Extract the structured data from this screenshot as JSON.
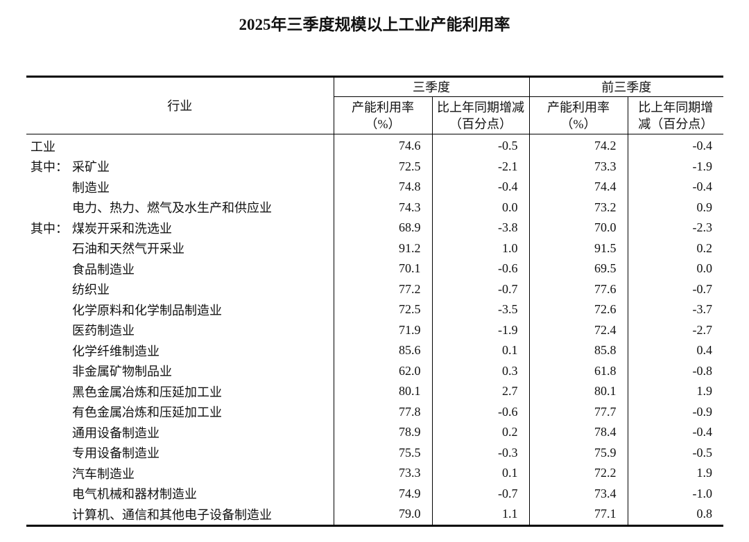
{
  "title": "2025年三季度规模以上工业产能利用率",
  "header": {
    "industry": "行业",
    "q3": "三季度",
    "ytd": "前三季度",
    "rate": "产能利用率（%）",
    "change": "比上年同期增减（百分点）"
  },
  "rows": [
    {
      "prefix": "",
      "label": "工业",
      "q3_rate": "74.6",
      "q3_change": "-0.5",
      "ytd_rate": "74.2",
      "ytd_change": "-0.4"
    },
    {
      "prefix": "其中：",
      "label": "采矿业",
      "q3_rate": "72.5",
      "q3_change": "-2.1",
      "ytd_rate": "73.3",
      "ytd_change": "-1.9"
    },
    {
      "prefix": "",
      "label": "制造业",
      "q3_rate": "74.8",
      "q3_change": "-0.4",
      "ytd_rate": "74.4",
      "ytd_change": "-0.4"
    },
    {
      "prefix": "",
      "label": "电力、热力、燃气及水生产和供应业",
      "q3_rate": "74.3",
      "q3_change": "0.0",
      "ytd_rate": "73.2",
      "ytd_change": "0.9"
    },
    {
      "prefix": "其中：",
      "label": "煤炭开采和洗选业",
      "q3_rate": "68.9",
      "q3_change": "-3.8",
      "ytd_rate": "70.0",
      "ytd_change": "-2.3"
    },
    {
      "prefix": "",
      "label": "石油和天然气开采业",
      "q3_rate": "91.2",
      "q3_change": "1.0",
      "ytd_rate": "91.5",
      "ytd_change": "0.2"
    },
    {
      "prefix": "",
      "label": "食品制造业",
      "q3_rate": "70.1",
      "q3_change": "-0.6",
      "ytd_rate": "69.5",
      "ytd_change": "0.0"
    },
    {
      "prefix": "",
      "label": "纺织业",
      "q3_rate": "77.2",
      "q3_change": "-0.7",
      "ytd_rate": "77.6",
      "ytd_change": "-0.7"
    },
    {
      "prefix": "",
      "label": "化学原料和化学制品制造业",
      "q3_rate": "72.5",
      "q3_change": "-3.5",
      "ytd_rate": "72.6",
      "ytd_change": "-3.7"
    },
    {
      "prefix": "",
      "label": "医药制造业",
      "q3_rate": "71.9",
      "q3_change": "-1.9",
      "ytd_rate": "72.4",
      "ytd_change": "-2.7"
    },
    {
      "prefix": "",
      "label": "化学纤维制造业",
      "q3_rate": "85.6",
      "q3_change": "0.1",
      "ytd_rate": "85.8",
      "ytd_change": "0.4"
    },
    {
      "prefix": "",
      "label": "非金属矿物制品业",
      "q3_rate": "62.0",
      "q3_change": "0.3",
      "ytd_rate": "61.8",
      "ytd_change": "-0.8"
    },
    {
      "prefix": "",
      "label": "黑色金属冶炼和压延加工业",
      "q3_rate": "80.1",
      "q3_change": "2.7",
      "ytd_rate": "80.1",
      "ytd_change": "1.9"
    },
    {
      "prefix": "",
      "label": "有色金属冶炼和压延加工业",
      "q3_rate": "77.8",
      "q3_change": "-0.6",
      "ytd_rate": "77.7",
      "ytd_change": "-0.9"
    },
    {
      "prefix": "",
      "label": "通用设备制造业",
      "q3_rate": "78.9",
      "q3_change": "0.2",
      "ytd_rate": "78.4",
      "ytd_change": "-0.4"
    },
    {
      "prefix": "",
      "label": "专用设备制造业",
      "q3_rate": "75.5",
      "q3_change": "-0.3",
      "ytd_rate": "75.9",
      "ytd_change": "-0.5"
    },
    {
      "prefix": "",
      "label": "汽车制造业",
      "q3_rate": "73.3",
      "q3_change": "0.1",
      "ytd_rate": "72.2",
      "ytd_change": "1.9"
    },
    {
      "prefix": "",
      "label": "电气机械和器材制造业",
      "q3_rate": "74.9",
      "q3_change": "-0.7",
      "ytd_rate": "73.4",
      "ytd_change": "-1.0"
    },
    {
      "prefix": "",
      "label": "计算机、通信和其他电子设备制造业",
      "q3_rate": "79.0",
      "q3_change": "1.1",
      "ytd_rate": "77.1",
      "ytd_change": "0.8"
    }
  ]
}
